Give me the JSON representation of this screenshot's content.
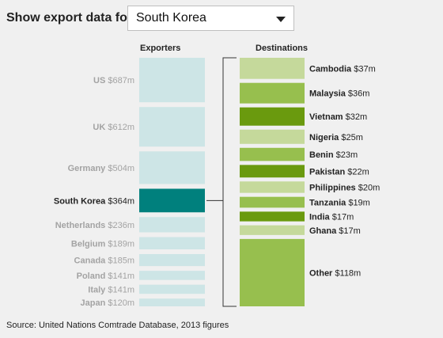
{
  "filter": {
    "label": "Show export data for:",
    "selected": "South Korea"
  },
  "headers": {
    "exporters": "Exporters",
    "destinations": "Destinations"
  },
  "source": "Source: United Nations Comtrade Database, 2013 figures",
  "colors": {
    "exporter_default": "#cde5e6",
    "exporter_label_default": "#a3a3a3",
    "exporter_selected": "#00807d",
    "exporter_label_selected": "#222222",
    "dest_light": "#c5d99b",
    "dest_mid": "#97bf4e",
    "dest_dark": "#6a9a0e",
    "bracket": "#333333"
  },
  "chart_data": {
    "type": "bar",
    "unit": "$m",
    "exporters": [
      {
        "name": "US",
        "value": 687,
        "label": "$687m",
        "selected": false
      },
      {
        "name": "UK",
        "value": 612,
        "label": "$612m",
        "selected": false
      },
      {
        "name": "Germany",
        "value": 504,
        "label": "$504m",
        "selected": false
      },
      {
        "name": "South Korea",
        "value": 364,
        "label": "$364m",
        "selected": true
      },
      {
        "name": "Netherlands",
        "value": 236,
        "label": "$236m",
        "selected": false
      },
      {
        "name": "Belgium",
        "value": 189,
        "label": "$189m",
        "selected": false
      },
      {
        "name": "Canada",
        "value": 185,
        "label": "$185m",
        "selected": false
      },
      {
        "name": "Poland",
        "value": 141,
        "label": "$141m",
        "selected": false
      },
      {
        "name": "Italy",
        "value": 141,
        "label": "$141m",
        "selected": false
      },
      {
        "name": "Japan",
        "value": 120,
        "label": "$120m",
        "selected": false
      }
    ],
    "destinations": [
      {
        "name": "Cambodia",
        "value": 37,
        "label": "$37m",
        "shade": "light"
      },
      {
        "name": "Malaysia",
        "value": 36,
        "label": "$36m",
        "shade": "mid"
      },
      {
        "name": "Vietnam",
        "value": 32,
        "label": "$32m",
        "shade": "dark"
      },
      {
        "name": "Nigeria",
        "value": 25,
        "label": "$25m",
        "shade": "light"
      },
      {
        "name": "Benin",
        "value": 23,
        "label": "$23m",
        "shade": "mid"
      },
      {
        "name": "Pakistan",
        "value": 22,
        "label": "$22m",
        "shade": "dark"
      },
      {
        "name": "Philippines",
        "value": 20,
        "label": "$20m",
        "shade": "light"
      },
      {
        "name": "Tanzania",
        "value": 19,
        "label": "$19m",
        "shade": "mid"
      },
      {
        "name": "India",
        "value": 17,
        "label": "$17m",
        "shade": "dark"
      },
      {
        "name": "Ghana",
        "value": 17,
        "label": "$17m",
        "shade": "light"
      },
      {
        "name": "Other",
        "value": 118,
        "label": "$118m",
        "shade": "mid"
      }
    ]
  }
}
